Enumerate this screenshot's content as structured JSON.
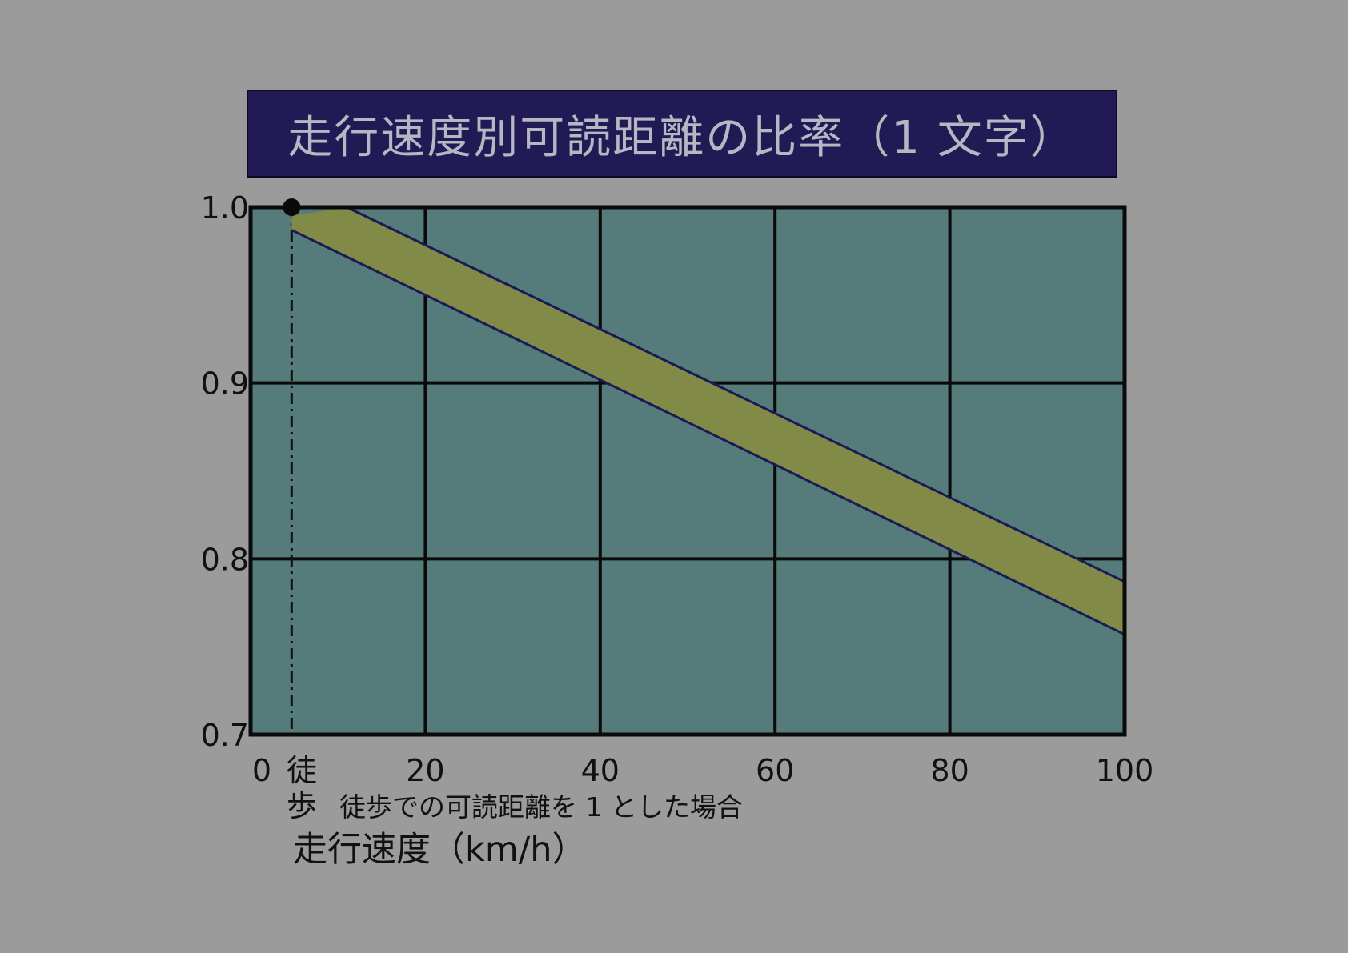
{
  "title": "走行速度別可読距離の比率（1 文字）",
  "chart_data": {
    "type": "area",
    "title": "走行速度別可読距離の比率（1 文字）",
    "xlabel": "走行速度（km/h）",
    "ylabel": "",
    "xlim": [
      0,
      100
    ],
    "ylim": [
      0.7,
      1.0
    ],
    "x_ticks": [
      "0",
      "20",
      "40",
      "60",
      "80",
      "100"
    ],
    "y_ticks": [
      "1.0",
      "0.9",
      "0.8",
      "0.7"
    ],
    "grid": true,
    "walking_marker": {
      "label_line1": "徒",
      "label_line2": "歩",
      "x": 4.7,
      "y": 1.0
    },
    "note": "徒歩での可読距離を 1 とした場合",
    "band": {
      "upper": [
        [
          4.7,
          0.995
        ],
        [
          11,
          1.0
        ],
        [
          100,
          0.787
        ]
      ],
      "lower": [
        [
          4.7,
          0.987
        ],
        [
          100,
          0.757
        ]
      ]
    },
    "colors": {
      "plot_background": "#557c7b",
      "band_fill": "#828a48",
      "band_edge": "#1a1a55",
      "grid": "#0a0a0a",
      "title_background": "#221a55",
      "title_text": "#b7b7c4",
      "page_background": "#9b9b9b"
    }
  }
}
